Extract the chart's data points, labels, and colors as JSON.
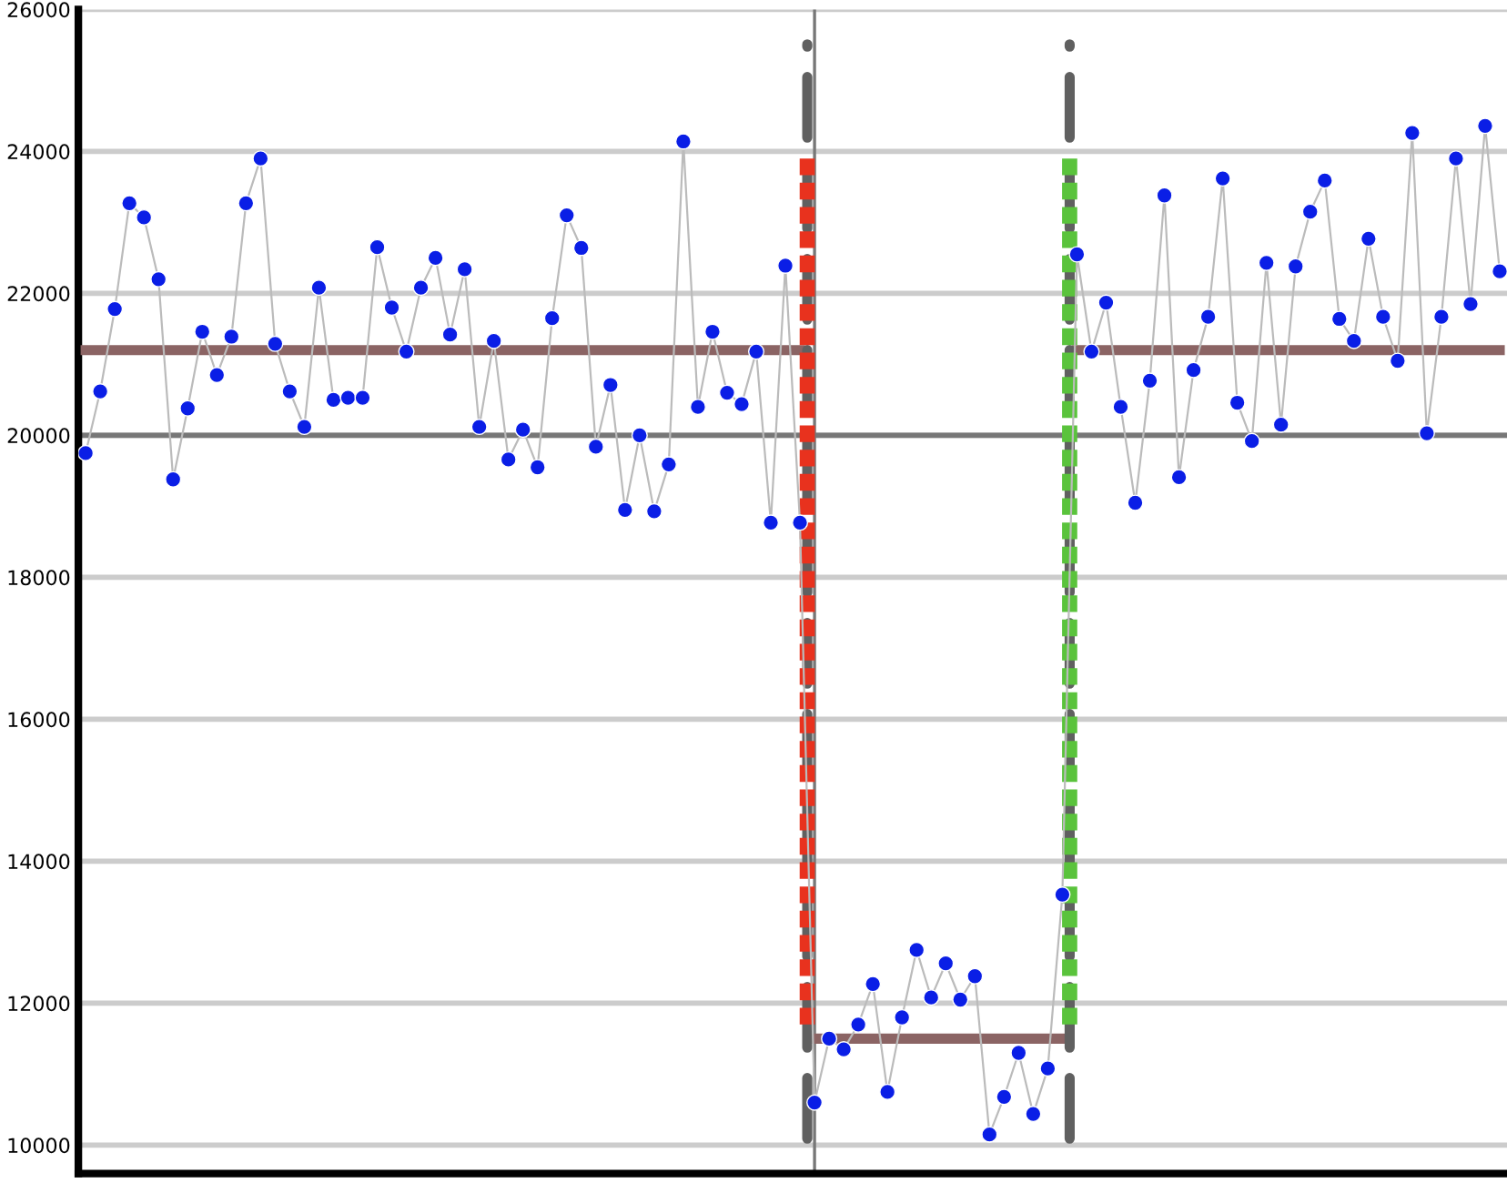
{
  "chart_data": {
    "type": "line",
    "categories": [
      null,
      null,
      null,
      null,
      null,
      null,
      null,
      null,
      null,
      null,
      null,
      null,
      null,
      null,
      null,
      null,
      null,
      null,
      null,
      null,
      null,
      null,
      null,
      null,
      null,
      null,
      null,
      null,
      null,
      null,
      null,
      null,
      null,
      null,
      null,
      null,
      null,
      null,
      null,
      null,
      null,
      null,
      null,
      null,
      null,
      null,
      null,
      null,
      null,
      null,
      null,
      null,
      null,
      null,
      null,
      null,
      null,
      null,
      null,
      null,
      null,
      null,
      null,
      null,
      null,
      null,
      null,
      null,
      null,
      null,
      null,
      null,
      null,
      null,
      null,
      null,
      null,
      null,
      null,
      null,
      null,
      null,
      null,
      null,
      null,
      null,
      null,
      null,
      null,
      null,
      null,
      null,
      null,
      null,
      null,
      null,
      null,
      null
    ],
    "series": [
      {
        "color": "#0a1ee6",
        "marker": "circle",
        "values": [
          19750,
          20620,
          21780,
          23270,
          23070,
          22200,
          19380,
          20380,
          21460,
          20850,
          21390,
          23270,
          23900,
          21290,
          20620,
          20120,
          22080,
          20500,
          20530,
          20530,
          22650,
          21800,
          21180,
          22080,
          22500,
          21420,
          22340,
          20120,
          21330,
          19660,
          20080,
          19550,
          21650,
          23100,
          22640,
          19840,
          20710,
          18950,
          20000,
          18930,
          19590,
          24140,
          20400,
          21460,
          20600,
          20440,
          21180,
          18770,
          22390,
          18770,
          10600,
          11500,
          11350,
          11700,
          12270,
          10750,
          11800,
          12750,
          12080,
          12560,
          12050,
          12380,
          10150,
          10680,
          11300,
          10440,
          11080,
          13530,
          22550,
          21180,
          21870,
          20400,
          19050,
          20770,
          23380,
          19410,
          20920,
          21670,
          23620,
          20460,
          19920,
          22430,
          20150,
          22380,
          23150,
          23590,
          21640,
          21330,
          22770,
          21670,
          21050,
          24260,
          20030,
          21670,
          23900,
          21850,
          24360,
          22310
        ]
      },
      {
        "type": "line",
        "color": "#8b6464",
        "marker": "none",
        "values": [
          21200,
          21200,
          21200,
          21200,
          21200,
          21200,
          21200,
          21200,
          21200,
          21200,
          21200,
          21200,
          21200,
          21200,
          21200,
          21200,
          21200,
          21200,
          21200,
          21200,
          21200,
          21200,
          21200,
          21200,
          21200,
          21200,
          21200,
          21200,
          21200,
          21200,
          21200,
          21200,
          21200,
          21200,
          21200,
          21200,
          21200,
          21200,
          21200,
          21200,
          21200,
          21200,
          21200,
          21200,
          21200,
          21200,
          21200,
          21200,
          21200,
          21200,
          null,
          null,
          null,
          null,
          null,
          null,
          null,
          null,
          null,
          null,
          null,
          null,
          null,
          null,
          null,
          null,
          null,
          null,
          null,
          null,
          null,
          null,
          null,
          null,
          null,
          null,
          null,
          null,
          null,
          null,
          null,
          null,
          null,
          null,
          null,
          null,
          null,
          null,
          null,
          null,
          null,
          null,
          null,
          null,
          null,
          null,
          null,
          null
        ]
      },
      {
        "type": "line",
        "color": "#8b6464",
        "marker": "none",
        "values": [
          null,
          null,
          null,
          null,
          null,
          null,
          null,
          null,
          null,
          null,
          null,
          null,
          null,
          null,
          null,
          null,
          null,
          null,
          null,
          null,
          null,
          null,
          null,
          null,
          null,
          null,
          null,
          null,
          null,
          null,
          null,
          null,
          null,
          null,
          null,
          null,
          null,
          null,
          null,
          null,
          null,
          null,
          null,
          null,
          null,
          null,
          null,
          null,
          null,
          null,
          11500,
          11500,
          11500,
          11500,
          11500,
          11500,
          11500,
          11500,
          11500,
          11500,
          11500,
          11500,
          11500,
          11500,
          11500,
          11500,
          11500,
          11500,
          null,
          null,
          null,
          null,
          null,
          null,
          null,
          null,
          null,
          null,
          null,
          null,
          null,
          null,
          null,
          null,
          null,
          null,
          null,
          null,
          null,
          null,
          null,
          null,
          null,
          null,
          null,
          null,
          null,
          null
        ]
      },
      {
        "type": "line",
        "color": "#8b6464",
        "marker": "none",
        "values": [
          null,
          null,
          null,
          null,
          null,
          null,
          null,
          null,
          null,
          null,
          null,
          null,
          null,
          null,
          null,
          null,
          null,
          null,
          null,
          null,
          null,
          null,
          null,
          null,
          null,
          null,
          null,
          null,
          null,
          null,
          null,
          null,
          null,
          null,
          null,
          null,
          null,
          null,
          null,
          null,
          null,
          null,
          null,
          null,
          null,
          null,
          null,
          null,
          null,
          null,
          null,
          null,
          null,
          null,
          null,
          null,
          null,
          null,
          null,
          null,
          null,
          null,
          null,
          null,
          null,
          null,
          null,
          null,
          21200,
          21200,
          21200,
          21200,
          21200,
          21200,
          21200,
          21200,
          21200,
          21200,
          21200,
          21200,
          21200,
          21200,
          21200,
          21200,
          21200,
          21200,
          21200,
          21200,
          21200,
          21200,
          21200,
          21200,
          21200,
          21200,
          21200,
          21200,
          21200,
          21200
        ]
      }
    ],
    "ylim": [
      9600,
      26000
    ],
    "yticks": [
      10000,
      12000,
      14000,
      16000,
      18000,
      20000,
      22000,
      24000,
      26000
    ],
    "grid": "y",
    "tick_labels": "y",
    "ref_lines": [
      {
        "axis": "y",
        "value": 20000,
        "color": "#777777"
      }
    ]
  }
}
